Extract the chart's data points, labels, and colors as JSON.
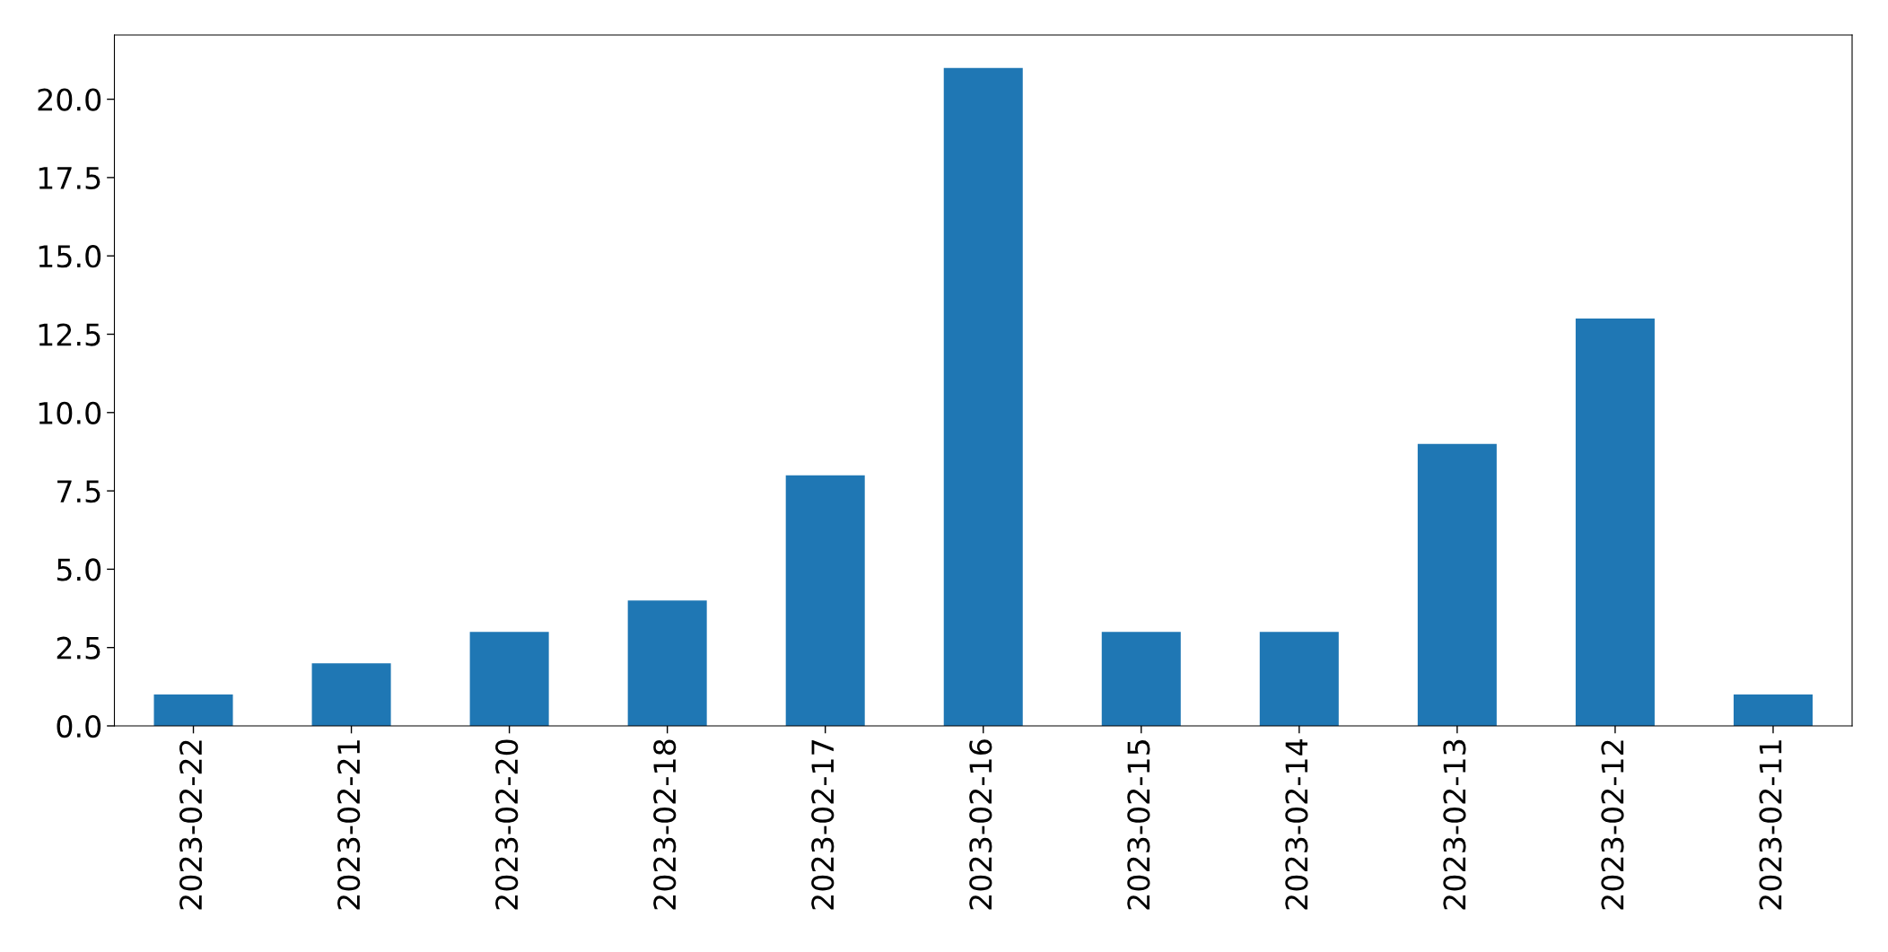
{
  "chart_data": {
    "type": "bar",
    "categories": [
      "2023-02-22",
      "2023-02-21",
      "2023-02-20",
      "2023-02-18",
      "2023-02-17",
      "2023-02-16",
      "2023-02-15",
      "2023-02-14",
      "2023-02-13",
      "2023-02-12",
      "2023-02-11"
    ],
    "values": [
      1,
      2,
      3,
      4,
      8,
      21,
      3,
      3,
      9,
      13,
      1
    ],
    "color": "#1f77b4",
    "ylim": [
      0,
      22.05
    ],
    "yticks": [
      {
        "value": 0,
        "label": "0.0"
      },
      {
        "value": 2.5,
        "label": "2.5"
      },
      {
        "value": 5,
        "label": "5.0"
      },
      {
        "value": 7.5,
        "label": "7.5"
      },
      {
        "value": 10,
        "label": "10.0"
      },
      {
        "value": 12.5,
        "label": "12.5"
      },
      {
        "value": 15,
        "label": "15.0"
      },
      {
        "value": 17.5,
        "label": "17.5"
      },
      {
        "value": 20,
        "label": "20.0"
      }
    ],
    "grid": false
  }
}
